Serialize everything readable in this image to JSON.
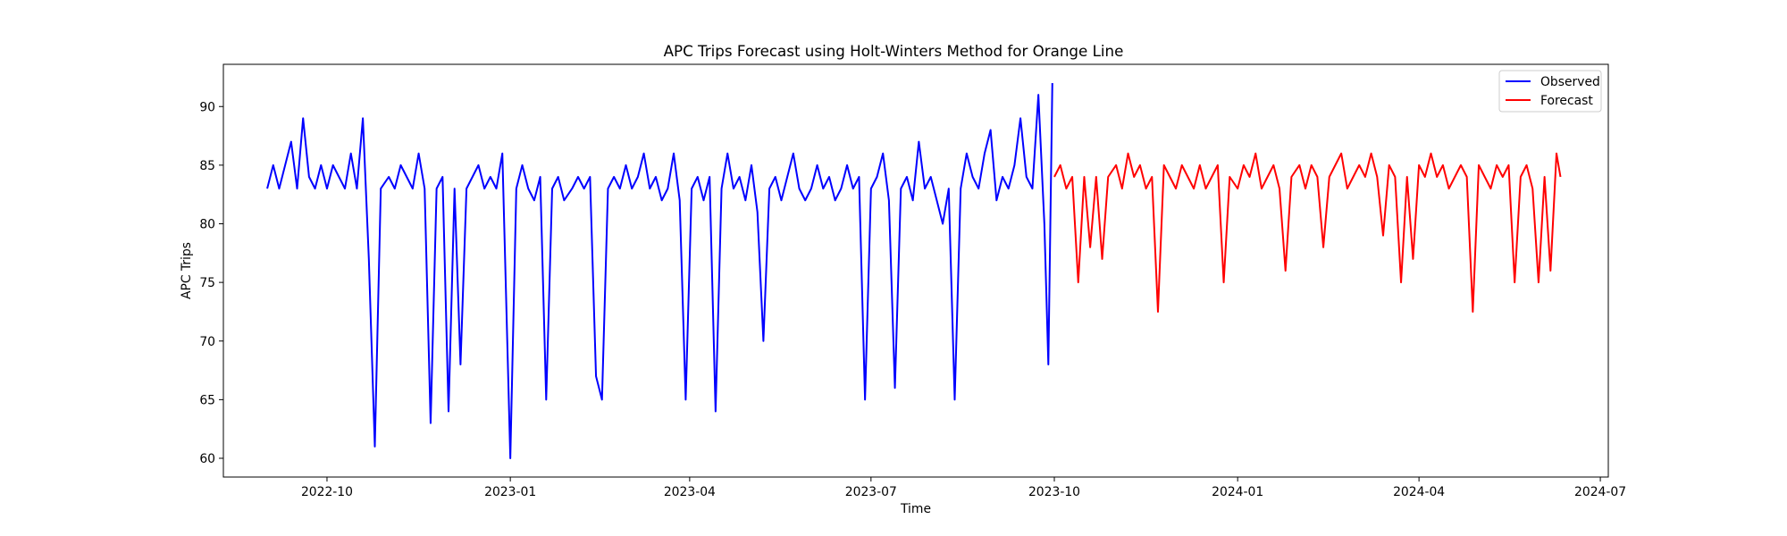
{
  "chart_data": {
    "type": "line",
    "title": "APC Trips Forecast using Holt-Winters Method for Orange Line",
    "xlabel": "Time",
    "ylabel": "APC Trips",
    "xlim": [
      "2022-08-10",
      "2024-07-05"
    ],
    "ylim": [
      58.4,
      93.6
    ],
    "x_ticks": [
      "2022-10",
      "2023-01",
      "2023-04",
      "2023-07",
      "2023-10",
      "2024-01",
      "2024-04",
      "2024-07"
    ],
    "y_ticks": [
      60,
      65,
      70,
      75,
      80,
      85,
      90
    ],
    "grid": false,
    "legend_position": "upper right",
    "series": [
      {
        "name": "Observed",
        "color": "#0000ff",
        "x": [
          "2022-09-01",
          "2022-09-04",
          "2022-09-07",
          "2022-09-10",
          "2022-09-13",
          "2022-09-16",
          "2022-09-19",
          "2022-09-22",
          "2022-09-25",
          "2022-09-28",
          "2022-10-01",
          "2022-10-04",
          "2022-10-07",
          "2022-10-10",
          "2022-10-13",
          "2022-10-16",
          "2022-10-19",
          "2022-10-22",
          "2022-10-25",
          "2022-10-28",
          "2022-11-01",
          "2022-11-04",
          "2022-11-07",
          "2022-11-10",
          "2022-11-13",
          "2022-11-16",
          "2022-11-19",
          "2022-11-22",
          "2022-11-25",
          "2022-11-28",
          "2022-12-01",
          "2022-12-04",
          "2022-12-07",
          "2022-12-10",
          "2022-12-13",
          "2022-12-16",
          "2022-12-19",
          "2022-12-22",
          "2022-12-25",
          "2022-12-28",
          "2023-01-01",
          "2023-01-04",
          "2023-01-07",
          "2023-01-10",
          "2023-01-13",
          "2023-01-16",
          "2023-01-19",
          "2023-01-22",
          "2023-01-25",
          "2023-01-28",
          "2023-02-01",
          "2023-02-04",
          "2023-02-07",
          "2023-02-10",
          "2023-02-13",
          "2023-02-16",
          "2023-02-19",
          "2023-02-22",
          "2023-02-25",
          "2023-02-28",
          "2023-03-03",
          "2023-03-06",
          "2023-03-09",
          "2023-03-12",
          "2023-03-15",
          "2023-03-18",
          "2023-03-21",
          "2023-03-24",
          "2023-03-27",
          "2023-03-30",
          "2023-04-02",
          "2023-04-05",
          "2023-04-08",
          "2023-04-11",
          "2023-04-14",
          "2023-04-17",
          "2023-04-20",
          "2023-04-23",
          "2023-04-26",
          "2023-04-29",
          "2023-05-02",
          "2023-05-05",
          "2023-05-08",
          "2023-05-11",
          "2023-05-14",
          "2023-05-17",
          "2023-05-20",
          "2023-05-23",
          "2023-05-26",
          "2023-05-29",
          "2023-06-01",
          "2023-06-04",
          "2023-06-07",
          "2023-06-10",
          "2023-06-13",
          "2023-06-16",
          "2023-06-19",
          "2023-06-22",
          "2023-06-25",
          "2023-06-28",
          "2023-07-01",
          "2023-07-04",
          "2023-07-07",
          "2023-07-10",
          "2023-07-13",
          "2023-07-16",
          "2023-07-19",
          "2023-07-22",
          "2023-07-25",
          "2023-07-28",
          "2023-07-31",
          "2023-08-03",
          "2023-08-06",
          "2023-08-09",
          "2023-08-12",
          "2023-08-15",
          "2023-08-18",
          "2023-08-21",
          "2023-08-24",
          "2023-08-27",
          "2023-08-30",
          "2023-09-02",
          "2023-09-05",
          "2023-09-08",
          "2023-09-11",
          "2023-09-14",
          "2023-09-17",
          "2023-09-20",
          "2023-09-23",
          "2023-09-26",
          "2023-09-28",
          "2023-09-30"
        ],
        "values": [
          83,
          85,
          83,
          85,
          87,
          83,
          89,
          84,
          83,
          85,
          83,
          85,
          84,
          83,
          86,
          83,
          89,
          77,
          61,
          83,
          84,
          83,
          85,
          84,
          83,
          86,
          83,
          63,
          83,
          84,
          64,
          83,
          68,
          83,
          84,
          85,
          83,
          84,
          83,
          86,
          60,
          83,
          85,
          83,
          82,
          84,
          65,
          83,
          84,
          82,
          83,
          84,
          83,
          84,
          67,
          65,
          83,
          84,
          83,
          85,
          83,
          84,
          86,
          83,
          84,
          82,
          83,
          86,
          82,
          65,
          83,
          84,
          82,
          84,
          64,
          83,
          86,
          83,
          84,
          82,
          85,
          81,
          70,
          83,
          84,
          82,
          84,
          86,
          83,
          82,
          83,
          85,
          83,
          84,
          82,
          83,
          85,
          83,
          84,
          65,
          83,
          84,
          86,
          82,
          66,
          83,
          84,
          82,
          87,
          83,
          84,
          82,
          80,
          83,
          65,
          83,
          86,
          84,
          83,
          86,
          88,
          82,
          84,
          83,
          85,
          89,
          84,
          83,
          91,
          80,
          68,
          92
        ]
      },
      {
        "name": "Forecast",
        "color": "#ff0000",
        "x": [
          "2023-10-01",
          "2023-10-04",
          "2023-10-07",
          "2023-10-10",
          "2023-10-13",
          "2023-10-16",
          "2023-10-19",
          "2023-10-22",
          "2023-10-25",
          "2023-10-28",
          "2023-11-01",
          "2023-11-04",
          "2023-11-07",
          "2023-11-10",
          "2023-11-13",
          "2023-11-16",
          "2023-11-19",
          "2023-11-22",
          "2023-11-25",
          "2023-11-28",
          "2023-12-01",
          "2023-12-04",
          "2023-12-07",
          "2023-12-10",
          "2023-12-13",
          "2023-12-16",
          "2023-12-19",
          "2023-12-22",
          "2023-12-25",
          "2023-12-28",
          "2024-01-01",
          "2024-01-04",
          "2024-01-07",
          "2024-01-10",
          "2024-01-13",
          "2024-01-16",
          "2024-01-19",
          "2024-01-22",
          "2024-01-25",
          "2024-01-28",
          "2024-02-01",
          "2024-02-04",
          "2024-02-07",
          "2024-02-10",
          "2024-02-13",
          "2024-02-16",
          "2024-02-19",
          "2024-02-22",
          "2024-02-25",
          "2024-02-28",
          "2024-03-02",
          "2024-03-05",
          "2024-03-08",
          "2024-03-11",
          "2024-03-14",
          "2024-03-17",
          "2024-03-20",
          "2024-03-23",
          "2024-03-26",
          "2024-03-29",
          "2024-04-01",
          "2024-04-04",
          "2024-04-07",
          "2024-04-10",
          "2024-04-13",
          "2024-04-16",
          "2024-04-19",
          "2024-04-22",
          "2024-04-25",
          "2024-04-28",
          "2024-05-01",
          "2024-05-04",
          "2024-05-07",
          "2024-05-10",
          "2024-05-13",
          "2024-05-16",
          "2024-05-19",
          "2024-05-22",
          "2024-05-25",
          "2024-05-28",
          "2024-05-31",
          "2024-06-03",
          "2024-06-06",
          "2024-06-09",
          "2024-06-11"
        ],
        "values": [
          84,
          85,
          83,
          84,
          75,
          84,
          78,
          84,
          77,
          84,
          85,
          83,
          86,
          84,
          85,
          83,
          84,
          72.5,
          85,
          84,
          83,
          85,
          84,
          83,
          85,
          83,
          84,
          85,
          75,
          84,
          83,
          85,
          84,
          86,
          83,
          84,
          85,
          83,
          76,
          84,
          85,
          83,
          85,
          84,
          78,
          84,
          85,
          86,
          83,
          84,
          85,
          84,
          86,
          84,
          79,
          85,
          84,
          75,
          84,
          77,
          85,
          84,
          86,
          84,
          85,
          83,
          84,
          85,
          84,
          72.5,
          85,
          84,
          83,
          85,
          84,
          85,
          75,
          84,
          85,
          83,
          75,
          84,
          76,
          86,
          84
        ]
      }
    ]
  }
}
